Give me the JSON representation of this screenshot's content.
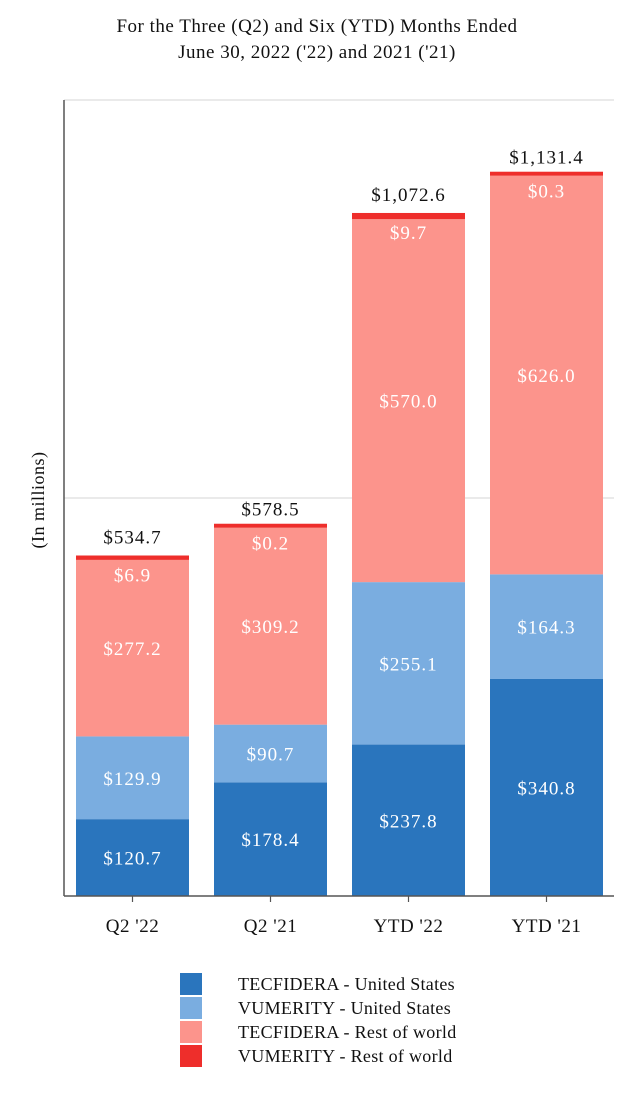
{
  "chart_data": {
    "type": "bar",
    "stacked": true,
    "title": [
      "For the Three (Q2) and Six (YTD) Months Ended",
      "June 30, 2022 ('22) and 2021 ('21)"
    ],
    "ylabel": "(In millions)",
    "xlabel": "",
    "ylim": [
      0,
      1250
    ],
    "grid": {
      "y_values": [
        625
      ],
      "x": false
    },
    "categories": [
      "Q2 '22",
      "Q2 '21",
      "YTD '22",
      "YTD '21"
    ],
    "series": [
      {
        "name": "TECFIDERA - United States",
        "color": "#2a75bd",
        "values": [
          120.7,
          178.4,
          237.8,
          340.8
        ],
        "labels": [
          "$120.7",
          "$178.4",
          "$237.8",
          "$340.8"
        ]
      },
      {
        "name": "VUMERITY - United States",
        "color": "#7aade0",
        "values": [
          129.9,
          90.7,
          255.1,
          164.3
        ],
        "labels": [
          "$129.9",
          "$90.7",
          "$255.1",
          "$164.3"
        ]
      },
      {
        "name": "TECFIDERA - Rest of world",
        "color": "#fc948c",
        "values": [
          277.2,
          309.2,
          570.0,
          626.0
        ],
        "labels": [
          "$277.2",
          "$309.2",
          "$570.0",
          "$626.0"
        ]
      },
      {
        "name": "VUMERITY - Rest of world",
        "color": "#ee2e2b",
        "values": [
          6.9,
          0.2,
          9.7,
          0.3
        ],
        "labels": [
          "$6.9",
          "$0.2",
          "$9.7",
          "$0.3"
        ]
      }
    ],
    "totals": [
      534.7,
      578.5,
      1072.6,
      1131.4
    ],
    "total_labels": [
      "$534.7",
      "$578.5",
      "$1,072.6",
      "$1,131.4"
    ],
    "legend": {
      "position": "bottom",
      "entries": [
        "TECFIDERA - United States",
        "VUMERITY - United States",
        "TECFIDERA - Rest of world",
        "VUMERITY - Rest of world"
      ]
    }
  }
}
